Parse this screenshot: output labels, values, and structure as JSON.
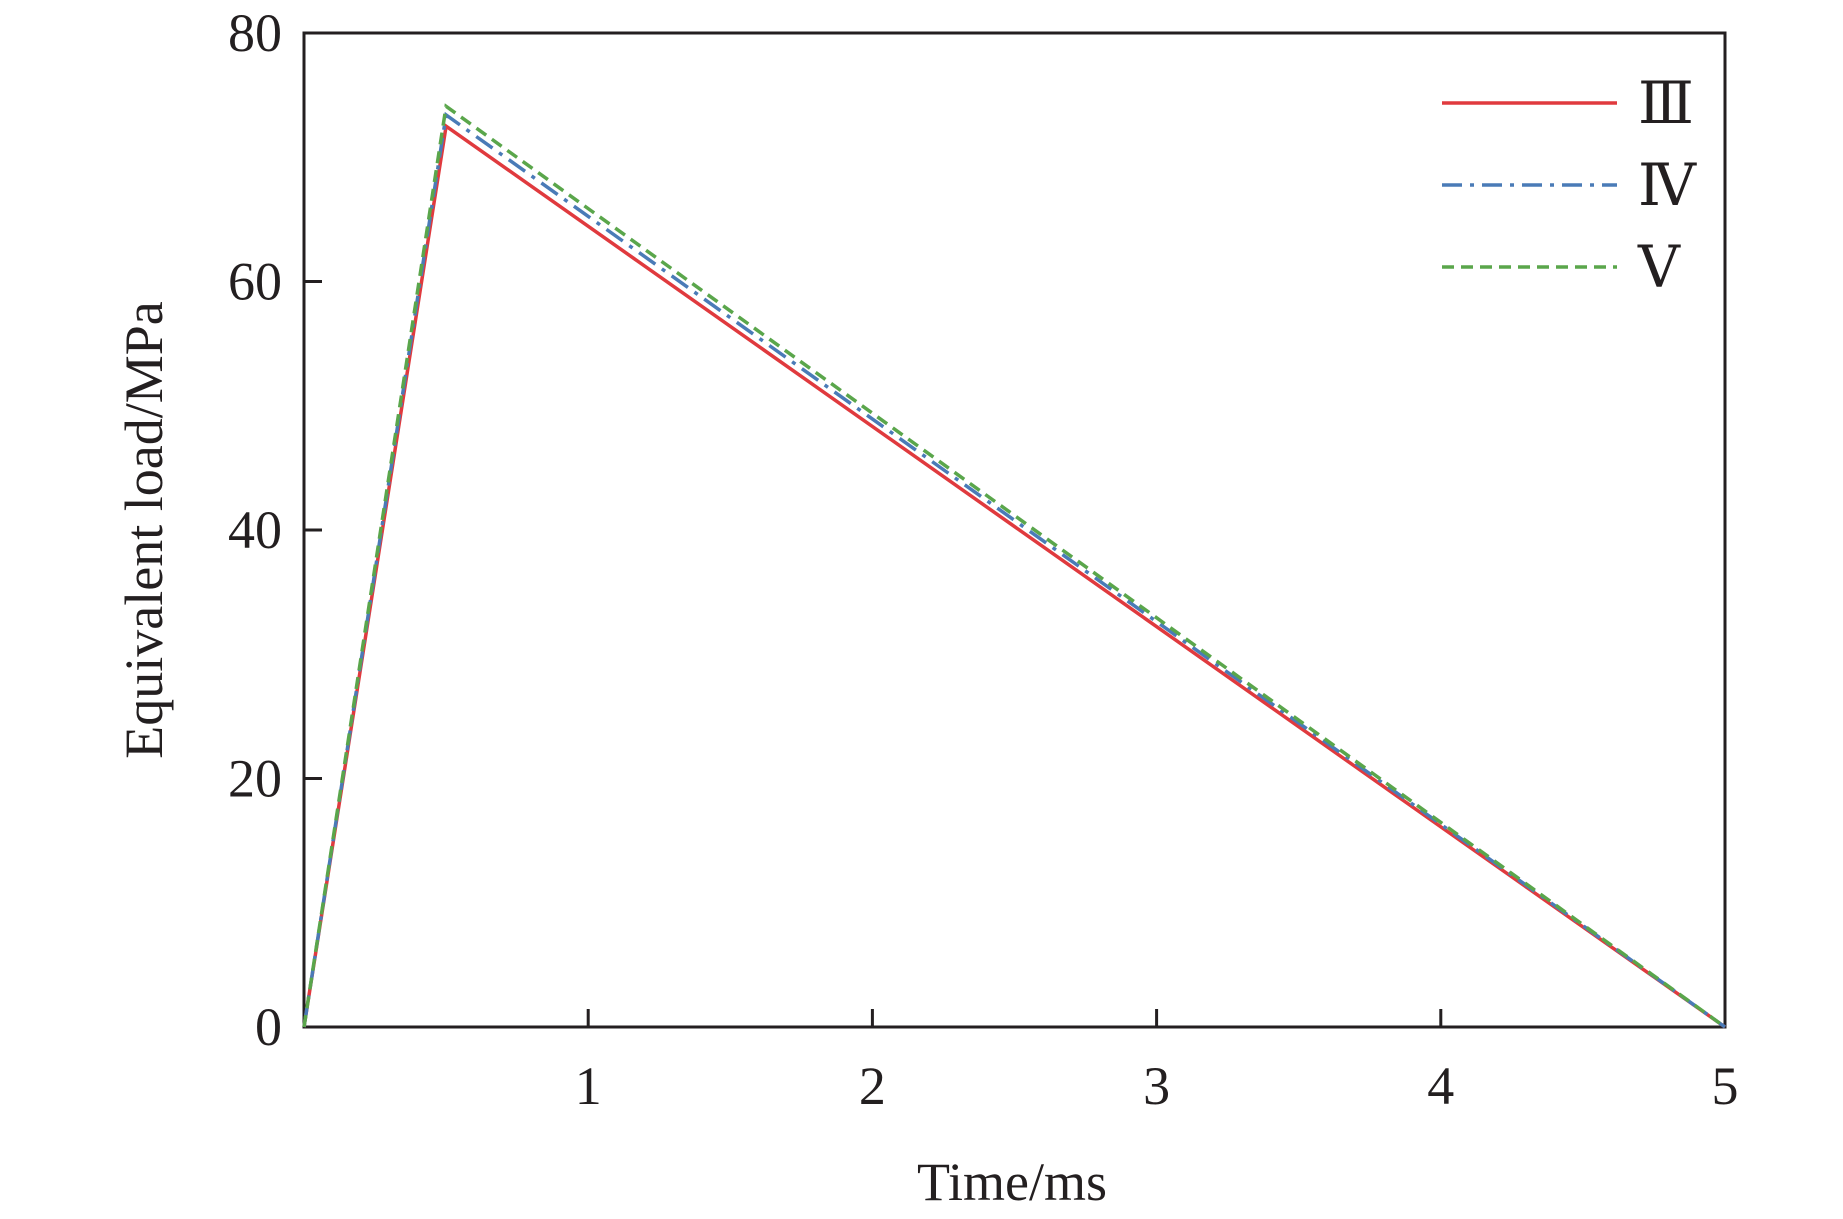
{
  "chart_data": {
    "type": "line",
    "title": "",
    "xlabel": "Time/ms",
    "ylabel": "Equivalent load/MPa",
    "xlim": [
      0,
      5
    ],
    "ylim": [
      0,
      80
    ],
    "xticks": [
      1,
      2,
      3,
      4,
      5
    ],
    "yticks": [
      0,
      20,
      40,
      60,
      80
    ],
    "grid": false,
    "legend_position": "top-right",
    "series": [
      {
        "name": "Ⅲ",
        "color": "#e03a3e",
        "dash": "solid",
        "x": [
          0,
          0.5,
          5
        ],
        "y": [
          0,
          72.5,
          0
        ]
      },
      {
        "name": "Ⅳ",
        "color": "#4a7bb7",
        "dash": "dash-dot",
        "x": [
          0,
          0.5,
          5
        ],
        "y": [
          0,
          73.4,
          0
        ]
      },
      {
        "name": "Ⅴ",
        "color": "#5aa64b",
        "dash": "dashed",
        "x": [
          0,
          0.5,
          5
        ],
        "y": [
          0,
          74.1,
          0
        ]
      }
    ]
  }
}
